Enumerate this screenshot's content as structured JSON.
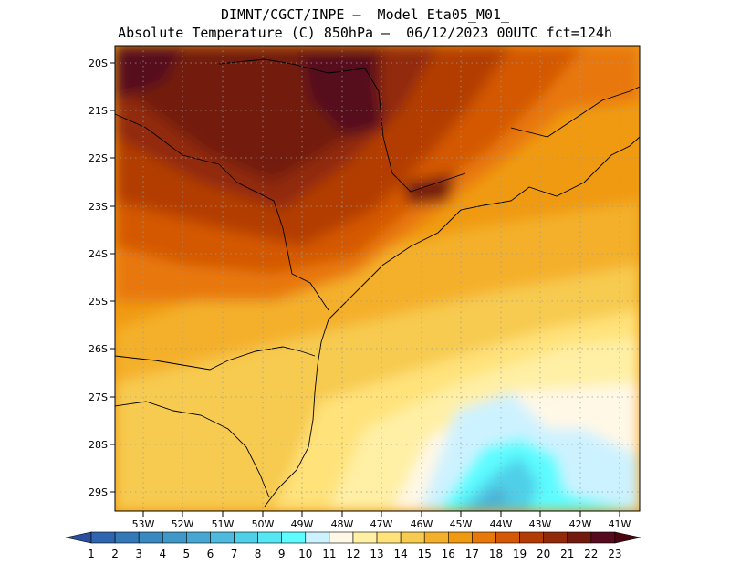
{
  "header": {
    "line1": "DIMNT/CGCT/INPE —  Model Eta05_M01_",
    "line2": "Absolute Temperature (C) 850hPa —  06/12/2023 00UTC fct=124h"
  },
  "map": {
    "lat_labels": [
      "20S",
      "21S",
      "22S",
      "23S",
      "24S",
      "25S",
      "26S",
      "27S",
      "28S",
      "29S"
    ],
    "lon_labels": [
      "53W",
      "52W",
      "51W",
      "50W",
      "49W",
      "48W",
      "47W",
      "46W",
      "45W",
      "44W",
      "43W",
      "42W",
      "41W"
    ],
    "lat_range": [
      -29.4,
      -19.9
    ],
    "lon_range": [
      -53.7,
      -40.5
    ],
    "grid": "dotted"
  },
  "colorbar": {
    "labels": [
      "1",
      "2",
      "3",
      "4",
      "5",
      "6",
      "7",
      "8",
      "9",
      "10",
      "11",
      "12",
      "13",
      "14",
      "15",
      "16",
      "17",
      "18",
      "19",
      "20",
      "21",
      "22",
      "23"
    ],
    "colors": [
      "#2a4ea0",
      "#2f64ae",
      "#3478b8",
      "#3a88c0",
      "#3f98c8",
      "#46a8d2",
      "#4dbade",
      "#4fcfe8",
      "#55e8f4",
      "#5cfcff",
      "#cdf2ff",
      "#fff8e6",
      "#fff0a6",
      "#ffe27a",
      "#f7cb50",
      "#f4b02a",
      "#f09a12",
      "#e8780a",
      "#d45806",
      "#b33c05",
      "#922a0a",
      "#731a0f",
      "#560a1e",
      "#4a0610"
    ]
  }
}
